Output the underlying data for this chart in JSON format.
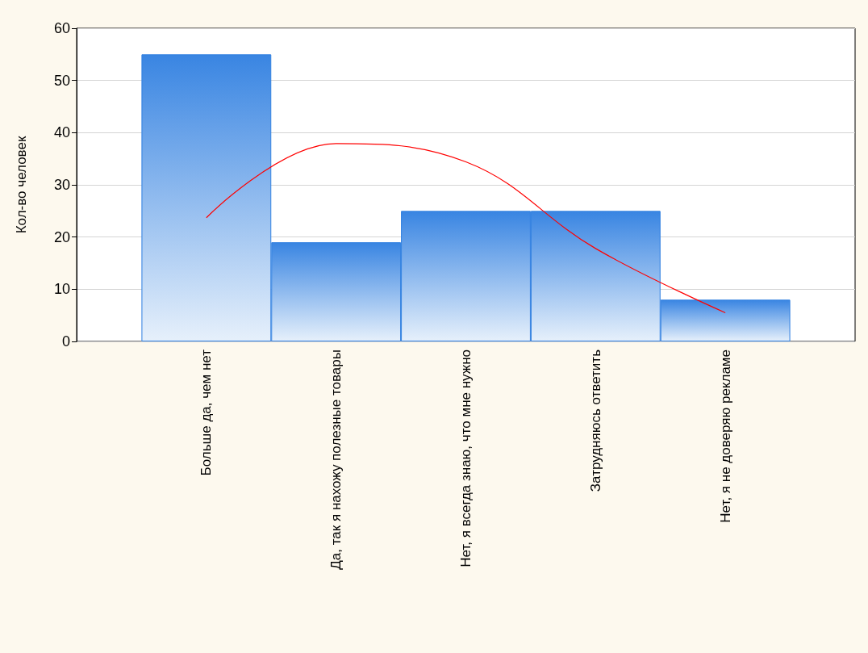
{
  "chart_data": {
    "type": "bar",
    "ylabel": "Кол-во человек",
    "categories": [
      "Больше да, чем нет",
      "Да, так я нахожу полезные товары",
      "Нет, я всегда знаю, что мне нужно",
      "Затрудняюсь ответить",
      "Нет, я не доверяю рекламе"
    ],
    "series": [
      {
        "color": "#2f7fe0",
        "values": [
          55,
          19,
          25,
          25,
          8
        ]
      },
      {
        "type": "line",
        "color": "#ff0000",
        "values": [
          23.7,
          37.9,
          34.4,
          17.8,
          5.5
        ]
      }
    ],
    "ylim": [
      0,
      60
    ],
    "yticks": [
      0,
      10,
      20,
      30,
      40,
      50,
      60
    ],
    "grid": "y",
    "line_style": "solid",
    "marker": "none"
  }
}
